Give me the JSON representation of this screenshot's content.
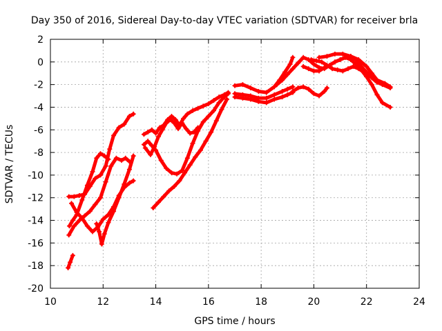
{
  "chart_data": {
    "type": "scatter",
    "title": "Day 350 of 2016, Sidereal Day-to-day VTEC variation (SDTVAR) for receiver brla",
    "xlabel": "GPS time / hours",
    "ylabel": "SDTVAR / TECUs",
    "xlim": [
      10,
      24
    ],
    "ylim": [
      -20,
      2
    ],
    "xticks": [
      10,
      12,
      14,
      16,
      18,
      20,
      22,
      24
    ],
    "yticks": [
      -20,
      -18,
      -16,
      -14,
      -12,
      -10,
      -8,
      -6,
      -4,
      -2,
      0,
      2
    ],
    "grid": true,
    "marker": "+",
    "color": "#ff0000",
    "series": [
      {
        "name": "s1",
        "points": [
          [
            10.67,
            -18.2
          ],
          [
            10.75,
            -17.7
          ],
          [
            10.85,
            -17.1
          ]
        ]
      },
      {
        "name": "s2",
        "points": [
          [
            10.7,
            -15.3
          ],
          [
            10.9,
            -14.5
          ],
          [
            11.1,
            -14.0
          ],
          [
            11.3,
            -13.6
          ],
          [
            11.5,
            -13.2
          ],
          [
            11.7,
            -12.6
          ],
          [
            11.9,
            -12.0
          ],
          [
            12.1,
            -10.6
          ],
          [
            12.3,
            -9.2
          ],
          [
            12.5,
            -8.5
          ],
          [
            12.7,
            -8.7
          ],
          [
            12.85,
            -8.5
          ],
          [
            13.0,
            -8.8
          ]
        ]
      },
      {
        "name": "s3",
        "points": [
          [
            10.72,
            -14.5
          ],
          [
            10.85,
            -14.0
          ],
          [
            11.0,
            -13.5
          ],
          [
            11.2,
            -12.2
          ],
          [
            11.4,
            -10.9
          ],
          [
            11.6,
            -9.7
          ],
          [
            11.75,
            -8.5
          ],
          [
            11.9,
            -8.1
          ],
          [
            12.05,
            -8.3
          ],
          [
            12.2,
            -8.6
          ]
        ]
      },
      {
        "name": "s4",
        "points": [
          [
            10.7,
            -11.9
          ],
          [
            10.9,
            -11.9
          ],
          [
            11.1,
            -11.8
          ],
          [
            11.3,
            -11.7
          ],
          [
            11.5,
            -11.0
          ],
          [
            11.7,
            -10.3
          ],
          [
            11.9,
            -10.0
          ],
          [
            12.1,
            -9.2
          ],
          [
            12.25,
            -7.7
          ],
          [
            12.4,
            -6.5
          ],
          [
            12.6,
            -5.8
          ],
          [
            12.8,
            -5.5
          ],
          [
            13.0,
            -4.8
          ],
          [
            13.15,
            -4.6
          ]
        ]
      },
      {
        "name": "s5",
        "points": [
          [
            10.8,
            -12.5
          ],
          [
            11.0,
            -13.3
          ],
          [
            11.2,
            -13.8
          ],
          [
            11.4,
            -14.5
          ],
          [
            11.6,
            -15.0
          ],
          [
            11.8,
            -14.6
          ],
          [
            12.0,
            -13.9
          ],
          [
            12.2,
            -13.5
          ],
          [
            12.4,
            -12.8
          ],
          [
            12.6,
            -11.8
          ],
          [
            12.8,
            -11.1
          ],
          [
            13.0,
            -10.7
          ],
          [
            13.15,
            -10.5
          ]
        ]
      },
      {
        "name": "s6",
        "points": [
          [
            11.75,
            -14.3
          ],
          [
            11.85,
            -15.0
          ],
          [
            11.95,
            -16.1
          ],
          [
            12.05,
            -15.2
          ],
          [
            12.2,
            -14.2
          ],
          [
            12.4,
            -13.2
          ],
          [
            12.6,
            -12.0
          ],
          [
            12.8,
            -10.8
          ],
          [
            13.0,
            -9.5
          ],
          [
            13.15,
            -8.3
          ]
        ]
      },
      {
        "name": "s7",
        "points": [
          [
            13.55,
            -7.3
          ],
          [
            13.7,
            -7.0
          ],
          [
            13.85,
            -7.4
          ],
          [
            14.0,
            -7.8
          ],
          [
            14.2,
            -8.7
          ],
          [
            14.4,
            -9.4
          ],
          [
            14.6,
            -9.8
          ],
          [
            14.8,
            -9.9
          ],
          [
            15.0,
            -9.6
          ],
          [
            15.2,
            -8.5
          ],
          [
            15.4,
            -7.2
          ],
          [
            15.6,
            -6.1
          ],
          [
            15.8,
            -5.3
          ],
          [
            16.0,
            -4.8
          ],
          [
            16.2,
            -4.3
          ],
          [
            16.4,
            -3.6
          ],
          [
            16.6,
            -3.1
          ],
          [
            16.75,
            -2.8
          ]
        ]
      },
      {
        "name": "s8",
        "points": [
          [
            13.55,
            -6.4
          ],
          [
            13.7,
            -6.2
          ],
          [
            13.85,
            -6.0
          ],
          [
            14.0,
            -6.3
          ],
          [
            14.15,
            -5.8
          ],
          [
            14.3,
            -5.6
          ],
          [
            14.45,
            -5.1
          ],
          [
            14.6,
            -4.8
          ],
          [
            14.75,
            -5.1
          ],
          [
            14.9,
            -5.6
          ],
          [
            15.05,
            -5.0
          ],
          [
            15.2,
            -4.6
          ],
          [
            15.4,
            -4.3
          ],
          [
            15.6,
            -4.1
          ],
          [
            15.8,
            -3.9
          ],
          [
            16.0,
            -3.7
          ],
          [
            16.2,
            -3.4
          ],
          [
            16.4,
            -3.1
          ],
          [
            16.6,
            -2.9
          ],
          [
            16.75,
            -2.7
          ]
        ]
      },
      {
        "name": "s9",
        "points": [
          [
            13.9,
            -12.9
          ],
          [
            14.1,
            -12.4
          ],
          [
            14.3,
            -11.9
          ],
          [
            14.5,
            -11.4
          ],
          [
            14.7,
            -11.0
          ],
          [
            14.9,
            -10.5
          ],
          [
            15.1,
            -9.8
          ],
          [
            15.3,
            -9.1
          ],
          [
            15.5,
            -8.4
          ],
          [
            15.7,
            -7.8
          ],
          [
            15.9,
            -7.0
          ],
          [
            16.1,
            -6.2
          ],
          [
            16.3,
            -5.2
          ],
          [
            16.5,
            -4.2
          ],
          [
            16.7,
            -3.3
          ]
        ]
      },
      {
        "name": "s10",
        "points": [
          [
            13.6,
            -7.6
          ],
          [
            13.8,
            -8.2
          ],
          [
            13.95,
            -7.5
          ],
          [
            14.1,
            -6.6
          ],
          [
            14.25,
            -6.0
          ],
          [
            14.4,
            -5.4
          ],
          [
            14.55,
            -5.1
          ],
          [
            14.7,
            -5.4
          ],
          [
            14.85,
            -5.9
          ],
          [
            15.0,
            -5.4
          ],
          [
            15.15,
            -5.9
          ],
          [
            15.3,
            -6.3
          ],
          [
            15.45,
            -6.2
          ],
          [
            15.6,
            -5.8
          ]
        ]
      },
      {
        "name": "s11",
        "points": [
          [
            17.0,
            -2.1
          ],
          [
            17.3,
            -2.0
          ],
          [
            17.6,
            -2.3
          ],
          [
            17.9,
            -2.6
          ],
          [
            18.2,
            -2.7
          ],
          [
            18.5,
            -2.2
          ],
          [
            18.7,
            -1.6
          ],
          [
            18.9,
            -0.9
          ],
          [
            19.1,
            -0.2
          ],
          [
            19.2,
            0.4
          ]
        ]
      },
      {
        "name": "s12",
        "points": [
          [
            17.0,
            -3.1
          ],
          [
            17.3,
            -3.2
          ],
          [
            17.6,
            -3.3
          ],
          [
            17.9,
            -3.5
          ],
          [
            18.2,
            -3.6
          ],
          [
            18.5,
            -3.3
          ],
          [
            18.8,
            -3.1
          ],
          [
            19.0,
            -2.9
          ],
          [
            19.2,
            -2.7
          ]
        ]
      },
      {
        "name": "s13",
        "points": [
          [
            17.0,
            -2.8
          ],
          [
            17.3,
            -2.9
          ],
          [
            17.6,
            -3.0
          ],
          [
            17.9,
            -3.2
          ],
          [
            18.2,
            -3.2
          ],
          [
            18.5,
            -2.9
          ],
          [
            18.8,
            -2.6
          ],
          [
            19.0,
            -2.4
          ],
          [
            19.2,
            -2.2
          ]
        ]
      },
      {
        "name": "s14",
        "points": [
          [
            18.6,
            -2.0
          ],
          [
            18.8,
            -1.6
          ],
          [
            19.0,
            -1.1
          ],
          [
            19.2,
            -0.6
          ],
          [
            19.4,
            -0.1
          ],
          [
            19.6,
            0.4
          ],
          [
            19.8,
            0.2
          ],
          [
            20.0,
            -0.2
          ],
          [
            20.2,
            -0.5
          ],
          [
            20.4,
            -0.6
          ],
          [
            20.6,
            -0.3
          ],
          [
            20.8,
            0.0
          ],
          [
            21.0,
            0.2
          ],
          [
            21.2,
            0.4
          ],
          [
            21.4,
            0.5
          ],
          [
            21.6,
            0.2
          ],
          [
            21.8,
            -0.4
          ],
          [
            22.0,
            -0.9
          ],
          [
            22.2,
            -1.4
          ],
          [
            22.4,
            -1.8
          ],
          [
            22.6,
            -2.0
          ],
          [
            22.9,
            -2.3
          ]
        ]
      },
      {
        "name": "s15",
        "points": [
          [
            19.6,
            -0.4
          ],
          [
            19.8,
            -0.6
          ],
          [
            20.0,
            -0.8
          ],
          [
            20.2,
            -0.8
          ],
          [
            20.4,
            -0.5
          ],
          [
            20.6,
            -0.3
          ],
          [
            20.8,
            0.0
          ],
          [
            21.0,
            0.2
          ],
          [
            21.2,
            0.4
          ],
          [
            21.4,
            0.2
          ],
          [
            21.6,
            -0.2
          ],
          [
            21.8,
            -0.7
          ],
          [
            22.0,
            -1.3
          ],
          [
            22.2,
            -2.0
          ],
          [
            22.4,
            -2.9
          ],
          [
            22.6,
            -3.6
          ],
          [
            22.9,
            -4.0
          ]
        ]
      },
      {
        "name": "s16",
        "points": [
          [
            19.9,
            0.2
          ],
          [
            20.1,
            0.1
          ],
          [
            20.3,
            0.0
          ],
          [
            20.5,
            -0.3
          ],
          [
            20.7,
            -0.6
          ],
          [
            20.9,
            -0.7
          ],
          [
            21.1,
            -0.8
          ],
          [
            21.3,
            -0.6
          ],
          [
            21.5,
            -0.4
          ],
          [
            21.7,
            -0.6
          ],
          [
            21.9,
            -0.9
          ],
          [
            22.1,
            -1.2
          ]
        ]
      },
      {
        "name": "s17",
        "points": [
          [
            19.2,
            -2.6
          ],
          [
            19.4,
            -2.3
          ],
          [
            19.6,
            -2.2
          ],
          [
            19.8,
            -2.4
          ],
          [
            20.0,
            -2.8
          ],
          [
            20.2,
            -3.0
          ],
          [
            20.4,
            -2.6
          ],
          [
            20.5,
            -2.3
          ]
        ]
      },
      {
        "name": "s18",
        "points": [
          [
            20.2,
            0.4
          ],
          [
            20.5,
            0.5
          ],
          [
            20.8,
            0.7
          ],
          [
            21.1,
            0.7
          ],
          [
            21.4,
            0.5
          ],
          [
            21.7,
            0.2
          ],
          [
            22.0,
            -0.4
          ],
          [
            22.2,
            -1.0
          ],
          [
            22.4,
            -1.6
          ],
          [
            22.7,
            -1.9
          ],
          [
            22.9,
            -2.2
          ]
        ]
      }
    ]
  }
}
